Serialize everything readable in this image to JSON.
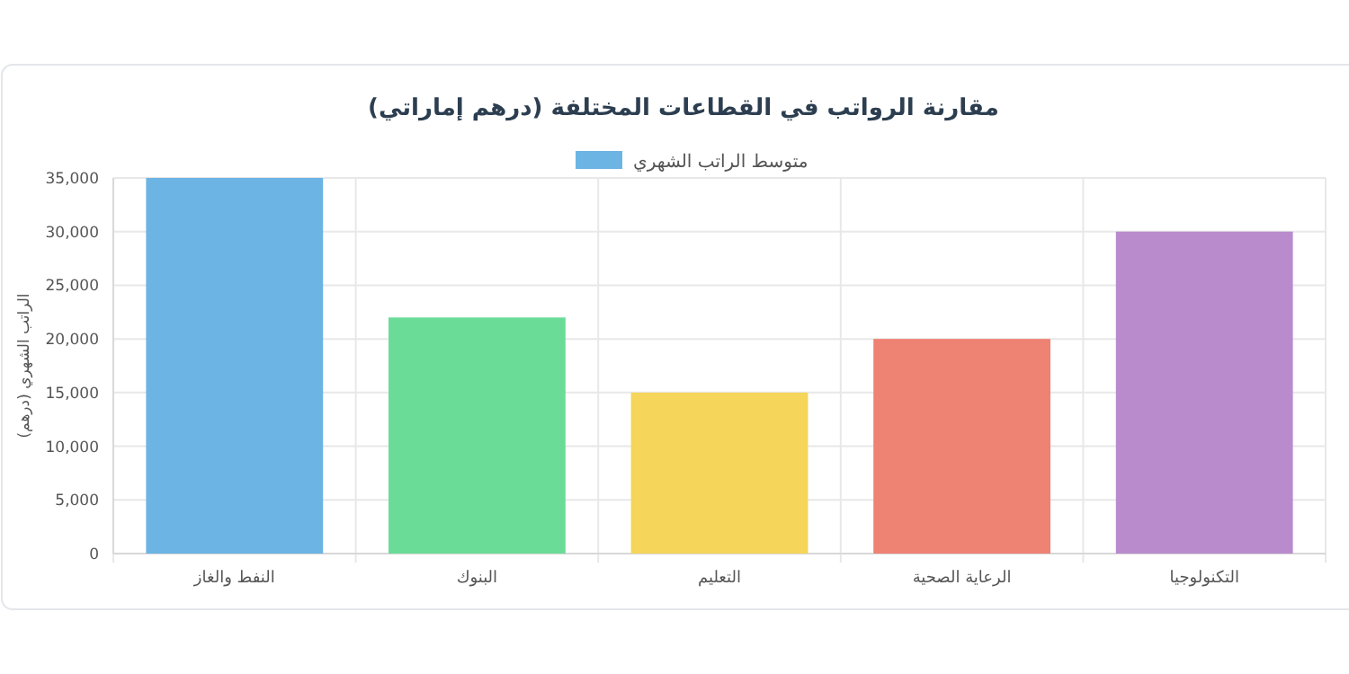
{
  "chart_data": {
    "type": "bar",
    "title": "مقارنة الرواتب في القطاعات المختلفة (درهم إماراتي)",
    "ylabel": "الراتب الشهري (درهم)",
    "categories": [
      "النفط والغاز",
      "البنوك",
      "التعليم",
      "الرعاية الصحية",
      "التكنولوجيا"
    ],
    "series": [
      {
        "name": "متوسط الراتب الشهري",
        "color": "#6cb4e4",
        "colors": [
          "#6cb4e4",
          "#6bdc98",
          "#f5d55a",
          "#ee8273",
          "#b98bcc"
        ],
        "values": [
          35000,
          22000,
          15000,
          20000,
          30000
        ]
      }
    ],
    "ylim": [
      0,
      35000
    ],
    "yticks": [
      {
        "value": 0,
        "label": "0"
      },
      {
        "value": 5000,
        "label": "5,000"
      },
      {
        "value": 10000,
        "label": "10,000"
      },
      {
        "value": 15000,
        "label": "15,000"
      },
      {
        "value": 20000,
        "label": "20,000"
      },
      {
        "value": 25000,
        "label": "25,000"
      },
      {
        "value": 30000,
        "label": "30,000"
      },
      {
        "value": 35000,
        "label": "35,000"
      }
    ],
    "grid": true,
    "legend": "top"
  }
}
